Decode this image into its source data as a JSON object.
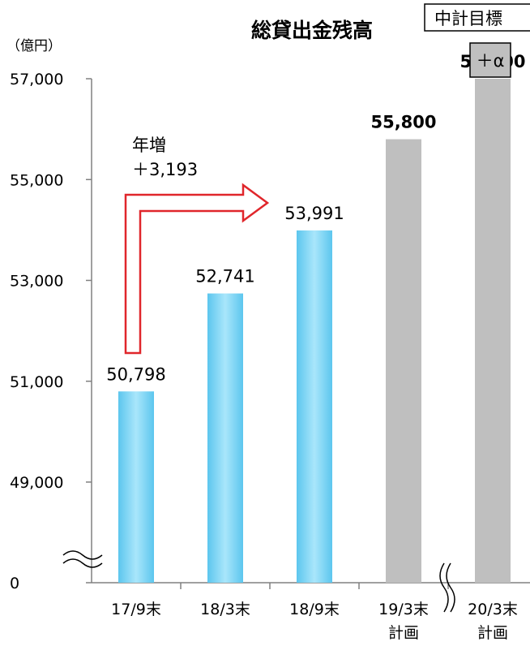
{
  "chart_data": {
    "type": "bar",
    "title": "総貸出金残高",
    "ylabel": "（億円）",
    "y_ticks": [
      "57,000",
      "55,000",
      "53,000",
      "51,000",
      "49,000",
      "0"
    ],
    "y_break": true,
    "ylim": [
      48000,
      57000
    ],
    "categories": [
      {
        "line1": "17/9末",
        "line2": ""
      },
      {
        "line1": "18/3末",
        "line2": ""
      },
      {
        "line1": "18/9末",
        "line2": ""
      },
      {
        "line1": "19/3末",
        "line2": "計画"
      },
      {
        "line1": "20/3末",
        "line2": "計画"
      }
    ],
    "values": [
      50798,
      52741,
      53991,
      55800,
      57000
    ],
    "value_labels": [
      "50,798",
      "52,741",
      "53,991",
      "55,800",
      "57,000"
    ],
    "bar_kinds": [
      "actual",
      "actual",
      "actual",
      "plan",
      "plan"
    ],
    "annotation": {
      "line1": "年増",
      "line2": "＋3,193"
    },
    "target_box": "中計目標",
    "alpha_box": "＋α",
    "colors": {
      "actual": "#5cc6ee",
      "plan": "#bfbfbf",
      "arrow": "#e0262b"
    }
  }
}
